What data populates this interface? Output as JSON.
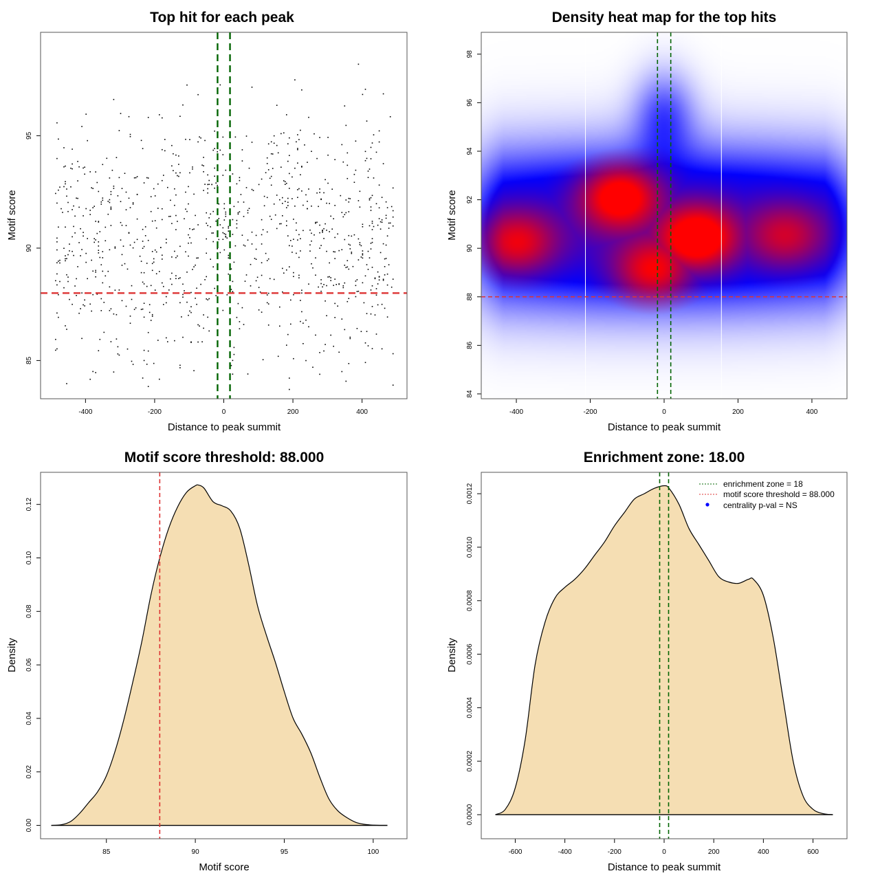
{
  "chart_data": [
    {
      "id": "scatter",
      "type": "scatter",
      "title": "Top hit for each peak",
      "xlabel": "Distance to peak summit",
      "ylabel": "Motif score",
      "xlim": [
        -530,
        530
      ],
      "ylim": [
        83.3,
        99.6
      ],
      "xticks": [
        -400,
        -200,
        0,
        200,
        400
      ],
      "yticks": [
        85,
        90,
        95
      ],
      "grid": false,
      "point_count_approx": 1000,
      "point_distribution": {
        "x_range": [
          -490,
          490
        ],
        "y_range": [
          83.7,
          98.9
        ],
        "y_center": 90.5
      },
      "reference_lines": [
        {
          "orientation": "vertical",
          "value": -18,
          "color": "#006400",
          "style": "dashed"
        },
        {
          "orientation": "vertical",
          "value": 18,
          "color": "#006400",
          "style": "dashed"
        },
        {
          "orientation": "horizontal",
          "value": 88,
          "color": "#dd3333",
          "style": "dashed"
        }
      ]
    },
    {
      "id": "heatmap",
      "type": "heatmap",
      "title": "Density heat map for the top hits",
      "xlabel": "Distance to peak summit",
      "ylabel": "Motif score",
      "xlim": [
        -495,
        495
      ],
      "ylim": [
        83.8,
        98.9
      ],
      "xticks": [
        -400,
        -200,
        0,
        200,
        400
      ],
      "yticks": [
        84,
        86,
        88,
        90,
        92,
        94,
        96,
        98
      ],
      "colors": {
        "low": "#ffffff",
        "mid": "#0000ff",
        "high": "#ff0000"
      },
      "hotspots": [
        {
          "x": -120,
          "y": 92.2,
          "intensity": 1.0
        },
        {
          "x": 90,
          "y": 90.4,
          "intensity": 1.0
        },
        {
          "x": -30,
          "y": 89.0,
          "intensity": 0.85
        },
        {
          "x": -400,
          "y": 90.2,
          "intensity": 0.75
        },
        {
          "x": 330,
          "y": 90.5,
          "intensity": 0.6
        }
      ],
      "reference_lines": [
        {
          "orientation": "vertical",
          "value": -213,
          "color": "#ffffff",
          "style": "solid"
        },
        {
          "orientation": "vertical",
          "value": 155,
          "color": "#ffffff",
          "style": "solid"
        },
        {
          "orientation": "vertical",
          "value": -18,
          "color": "#006400",
          "style": "dashed"
        },
        {
          "orientation": "vertical",
          "value": 18,
          "color": "#006400",
          "style": "dashed"
        },
        {
          "orientation": "horizontal",
          "value": 88,
          "color": "#dd3333",
          "style": "dashed"
        }
      ]
    },
    {
      "id": "score-density",
      "type": "area",
      "title": "Motif score threshold: 88.000",
      "xlabel": "Motif score",
      "ylabel": "Density",
      "xlim": [
        81.3,
        101.9
      ],
      "ylim": [
        -0.005,
        0.132
      ],
      "xticks": [
        85,
        90,
        95,
        100
      ],
      "yticks": [
        0.0,
        0.02,
        0.04,
        0.06,
        0.08,
        0.1,
        0.12
      ],
      "ytick_labels": [
        "0.00",
        "0.02",
        "0.04",
        "0.06",
        "0.08",
        "0.10",
        "0.12"
      ],
      "fill": "#f5deb3",
      "x": [
        81.9,
        82.5,
        83.0,
        83.5,
        84.0,
        84.5,
        85.0,
        85.5,
        86.0,
        86.5,
        87.0,
        87.5,
        88.0,
        88.5,
        89.0,
        89.5,
        90.0,
        90.2,
        90.5,
        91.0,
        91.5,
        92.0,
        92.5,
        93.0,
        93.5,
        94.0,
        94.5,
        95.0,
        95.5,
        96.0,
        96.5,
        97.0,
        97.5,
        98.0,
        98.5,
        99.0,
        99.5,
        100.0,
        100.8
      ],
      "y": [
        0.0,
        0.0003,
        0.0015,
        0.0045,
        0.0085,
        0.0125,
        0.0185,
        0.028,
        0.04,
        0.054,
        0.069,
        0.086,
        0.1,
        0.111,
        0.119,
        0.1245,
        0.127,
        0.1272,
        0.126,
        0.121,
        0.1195,
        0.1175,
        0.111,
        0.0975,
        0.082,
        0.071,
        0.061,
        0.05,
        0.04,
        0.034,
        0.027,
        0.018,
        0.01,
        0.0055,
        0.003,
        0.0012,
        0.0004,
        0.0001,
        0.0
      ],
      "reference_lines": [
        {
          "orientation": "vertical",
          "value": 88,
          "color": "#dd3333",
          "style": "dashed"
        }
      ]
    },
    {
      "id": "distance-density",
      "type": "area",
      "title": "Enrichment zone: 18.00",
      "xlabel": "Distance to peak summit",
      "ylabel": "Density",
      "xlim": [
        -737,
        737
      ],
      "ylim": [
        -9e-05,
        0.00128
      ],
      "xticks": [
        -600,
        -400,
        -200,
        0,
        200,
        400,
        600
      ],
      "yticks": [
        0.0,
        0.0002,
        0.0004,
        0.0006,
        0.0008,
        0.001,
        0.0012
      ],
      "ytick_labels": [
        "0.0000",
        "0.0002",
        "0.0004",
        "0.0006",
        "0.0008",
        "0.0010",
        "0.0012"
      ],
      "fill": "#f5deb3",
      "x": [
        -680,
        -640,
        -600,
        -560,
        -520,
        -480,
        -440,
        -400,
        -360,
        -320,
        -280,
        -240,
        -200,
        -160,
        -120,
        -80,
        -40,
        0,
        20,
        60,
        100,
        140,
        180,
        220,
        260,
        300,
        340,
        360,
        400,
        440,
        480,
        520,
        560,
        600,
        640,
        680
      ],
      "y": [
        0.0,
        2e-05,
        0.0001,
        0.00028,
        0.00056,
        0.00072,
        0.00081,
        0.00085,
        0.00088,
        0.00092,
        0.00097,
        0.00102,
        0.00108,
        0.00113,
        0.00118,
        0.0012,
        0.00122,
        0.00123,
        0.00122,
        0.00116,
        0.00107,
        0.00101,
        0.00095,
        0.00089,
        0.00087,
        0.000865,
        0.00088,
        0.00088,
        0.00082,
        0.00066,
        0.00043,
        0.0002,
        7e-05,
        2e-05,
        4e-06,
        0.0
      ],
      "reference_lines": [
        {
          "orientation": "vertical",
          "value": -18,
          "color": "#006400",
          "style": "dashed"
        },
        {
          "orientation": "vertical",
          "value": 18,
          "color": "#006400",
          "style": "dashed"
        }
      ],
      "legend": {
        "placement": "top-right",
        "entries": [
          {
            "label": "enrichment zone = 18",
            "symbol": "dotted-line",
            "color": "#006400"
          },
          {
            "label": "motif score threshold = 88.000",
            "symbol": "dotted-line",
            "color": "#dd3333"
          },
          {
            "label": "centrality p-val = NS",
            "symbol": "dot",
            "color": "#0000ff"
          }
        ]
      }
    }
  ]
}
